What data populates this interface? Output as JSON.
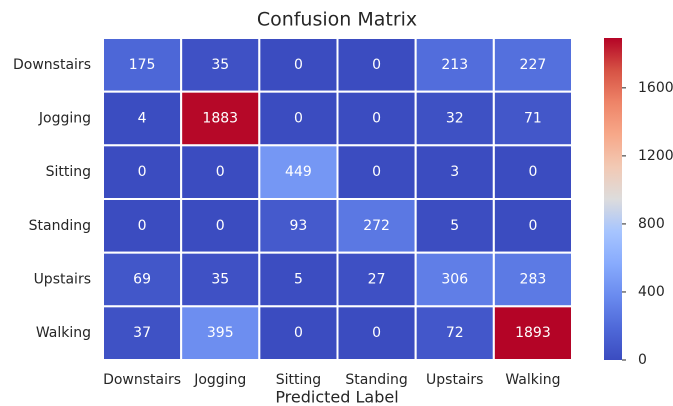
{
  "chart_data": {
    "type": "heatmap",
    "title": "Confusion Matrix",
    "x_label": "Predicted Label",
    "x_categories": [
      "Downstairs",
      "Jogging",
      "Sitting",
      "Standing",
      "Upstairs",
      "Walking"
    ],
    "y_categories": [
      "Downstairs",
      "Jogging",
      "Sitting",
      "Standing",
      "Upstairs",
      "Walking"
    ],
    "values": [
      [
        175,
        35,
        0,
        0,
        213,
        227
      ],
      [
        4,
        1883,
        0,
        0,
        32,
        71
      ],
      [
        0,
        0,
        449,
        0,
        3,
        0
      ],
      [
        0,
        0,
        93,
        272,
        5,
        0
      ],
      [
        69,
        35,
        5,
        27,
        306,
        283
      ],
      [
        37,
        395,
        0,
        0,
        72,
        1893
      ]
    ],
    "zlim": [
      0,
      1893
    ],
    "zticks": [
      0,
      400,
      800,
      1200,
      1600
    ],
    "colorscale": [
      "#3b4cc0",
      "#4f69d9",
      "#6a8bef",
      "#88abfd",
      "#a7c5fe",
      "#dddcdc",
      "#f2c9b4",
      "#f7a889",
      "#ee8468",
      "#d65244",
      "#b40426"
    ]
  }
}
